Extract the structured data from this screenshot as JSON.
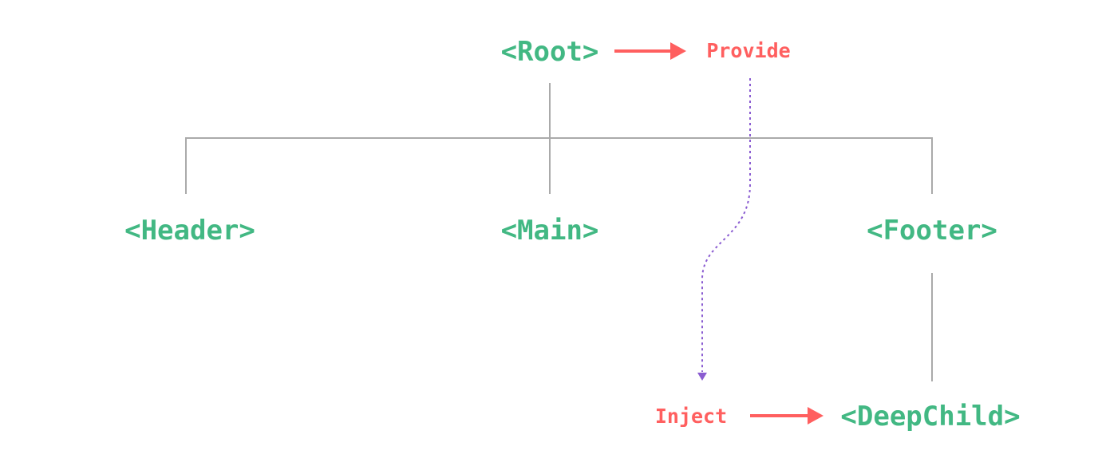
{
  "colors": {
    "component": "#42b883",
    "label": "#ff5f5f",
    "inject_path": "#8a5cd1",
    "tree_lines": "#aaaaaa"
  },
  "nodes": {
    "root": "<Root>",
    "header": "<Header>",
    "main": "<Main>",
    "footer": "<Footer>",
    "deepchild": "<DeepChild>"
  },
  "labels": {
    "provide": "Provide",
    "inject": "Inject"
  }
}
